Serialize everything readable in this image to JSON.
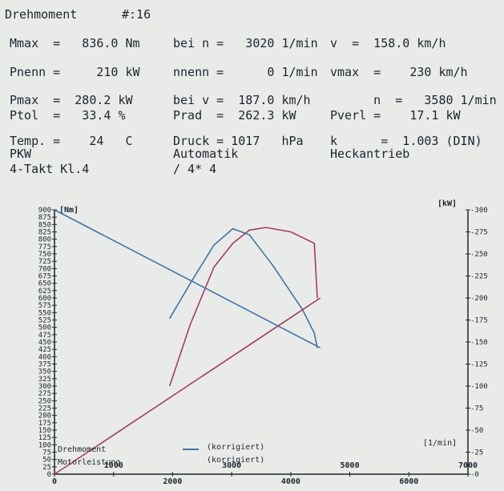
{
  "header": {
    "title": "Drehmoment",
    "number": "#:16"
  },
  "info_rows": [
    [
      {
        "text": "Mmax  =   836.0 Nm",
        "col": 0
      },
      {
        "text": "bei n =   3020 1/min",
        "col": 1
      },
      {
        "text": "v  =  158.0 km/h",
        "col": 2
      }
    ],
    [
      {
        "text": "Pnenn =     210 kW",
        "col": 0
      },
      {
        "text": "nnenn =      0 1/min",
        "col": 1
      },
      {
        "text": "vmax  =    230 km/h",
        "col": 2
      }
    ],
    [
      {
        "text": "Pmax  =  280.2 kW",
        "col": 0
      },
      {
        "text": "bei v =  187.0 km/h",
        "col": 1
      },
      {
        "text": "      n  =   3580 1/min",
        "col": 2
      }
    ],
    [
      {
        "text": "Ptol  =   33.4 %",
        "col": 0
      },
      {
        "text": "Prad  =  262.3 kW",
        "col": 1
      },
      {
        "text": "Pverl =    17.1 kW",
        "col": 2
      }
    ],
    [
      {
        "text": "Temp. =    24   C",
        "col": 0
      },
      {
        "text": "Druck = 1017   hPa",
        "col": 1
      },
      {
        "text": "k      =  1.003 (DIN)",
        "col": 2
      }
    ],
    [
      {
        "text": "PKW",
        "col": 0
      },
      {
        "text": "Automatik",
        "col": 1
      },
      {
        "text": "Heckantrieb",
        "col": 2
      }
    ],
    [
      {
        "text": "4-Takt Kl.4",
        "col": 0
      },
      {
        "text": "/ 4* 4",
        "col": 1
      }
    ]
  ],
  "chart_data": {
    "type": "line",
    "left_axis_label": "[Nm]",
    "right_axis_label": "[kW]",
    "x_axis_label": "[1/min]",
    "xlim": [
      0,
      7000
    ],
    "left_ylim": [
      0,
      900
    ],
    "right_ylim": [
      0,
      300
    ],
    "x_ticks": [
      0,
      1000,
      2000,
      3000,
      4000,
      5000,
      6000,
      7000
    ],
    "left_ticks": [
      0,
      25,
      50,
      75,
      100,
      125,
      150,
      175,
      200,
      225,
      250,
      275,
      300,
      325,
      350,
      375,
      400,
      425,
      450,
      475,
      500,
      525,
      550,
      575,
      600,
      625,
      650,
      675,
      700,
      725,
      750,
      775,
      800,
      825,
      850,
      875,
      900
    ],
    "right_ticks": [
      0,
      25,
      50,
      75,
      100,
      125,
      150,
      175,
      200,
      225,
      250,
      275,
      300
    ],
    "legend": [
      {
        "name": "Drehmoment",
        "note": "(korrigiert)",
        "color": "#3f74a8"
      },
      {
        "name": "Motorleistung",
        "note": "(korrigiert)",
        "color": "#a83a63"
      }
    ],
    "series": [
      {
        "name": "Drehmoment",
        "axis": "left",
        "color": "#3f74a8",
        "x": [
          1950,
          2300,
          2700,
          3020,
          3300,
          3700,
          4200,
          4400,
          4450
        ],
        "y": [
          530,
          650,
          780,
          836,
          815,
          710,
          560,
          480,
          430
        ]
      },
      {
        "name": "Motorleistung",
        "axis": "right",
        "color": "#a83a63",
        "x": [
          1950,
          2300,
          2700,
          3020,
          3300,
          3580,
          4000,
          4400,
          4450
        ],
        "y": [
          100,
          170,
          235,
          262,
          277,
          280,
          275,
          262,
          200
        ]
      },
      {
        "name": "Drehmoment",
        "axis": "left",
        "color": "#3f74a8",
        "x": [
          0,
          4500
        ],
        "y": [
          900,
          430
        ]
      },
      {
        "name": "Motorleistung",
        "axis": "right",
        "color": "#a83a63",
        "x": [
          0,
          4500
        ],
        "y": [
          0,
          200
        ]
      }
    ]
  }
}
